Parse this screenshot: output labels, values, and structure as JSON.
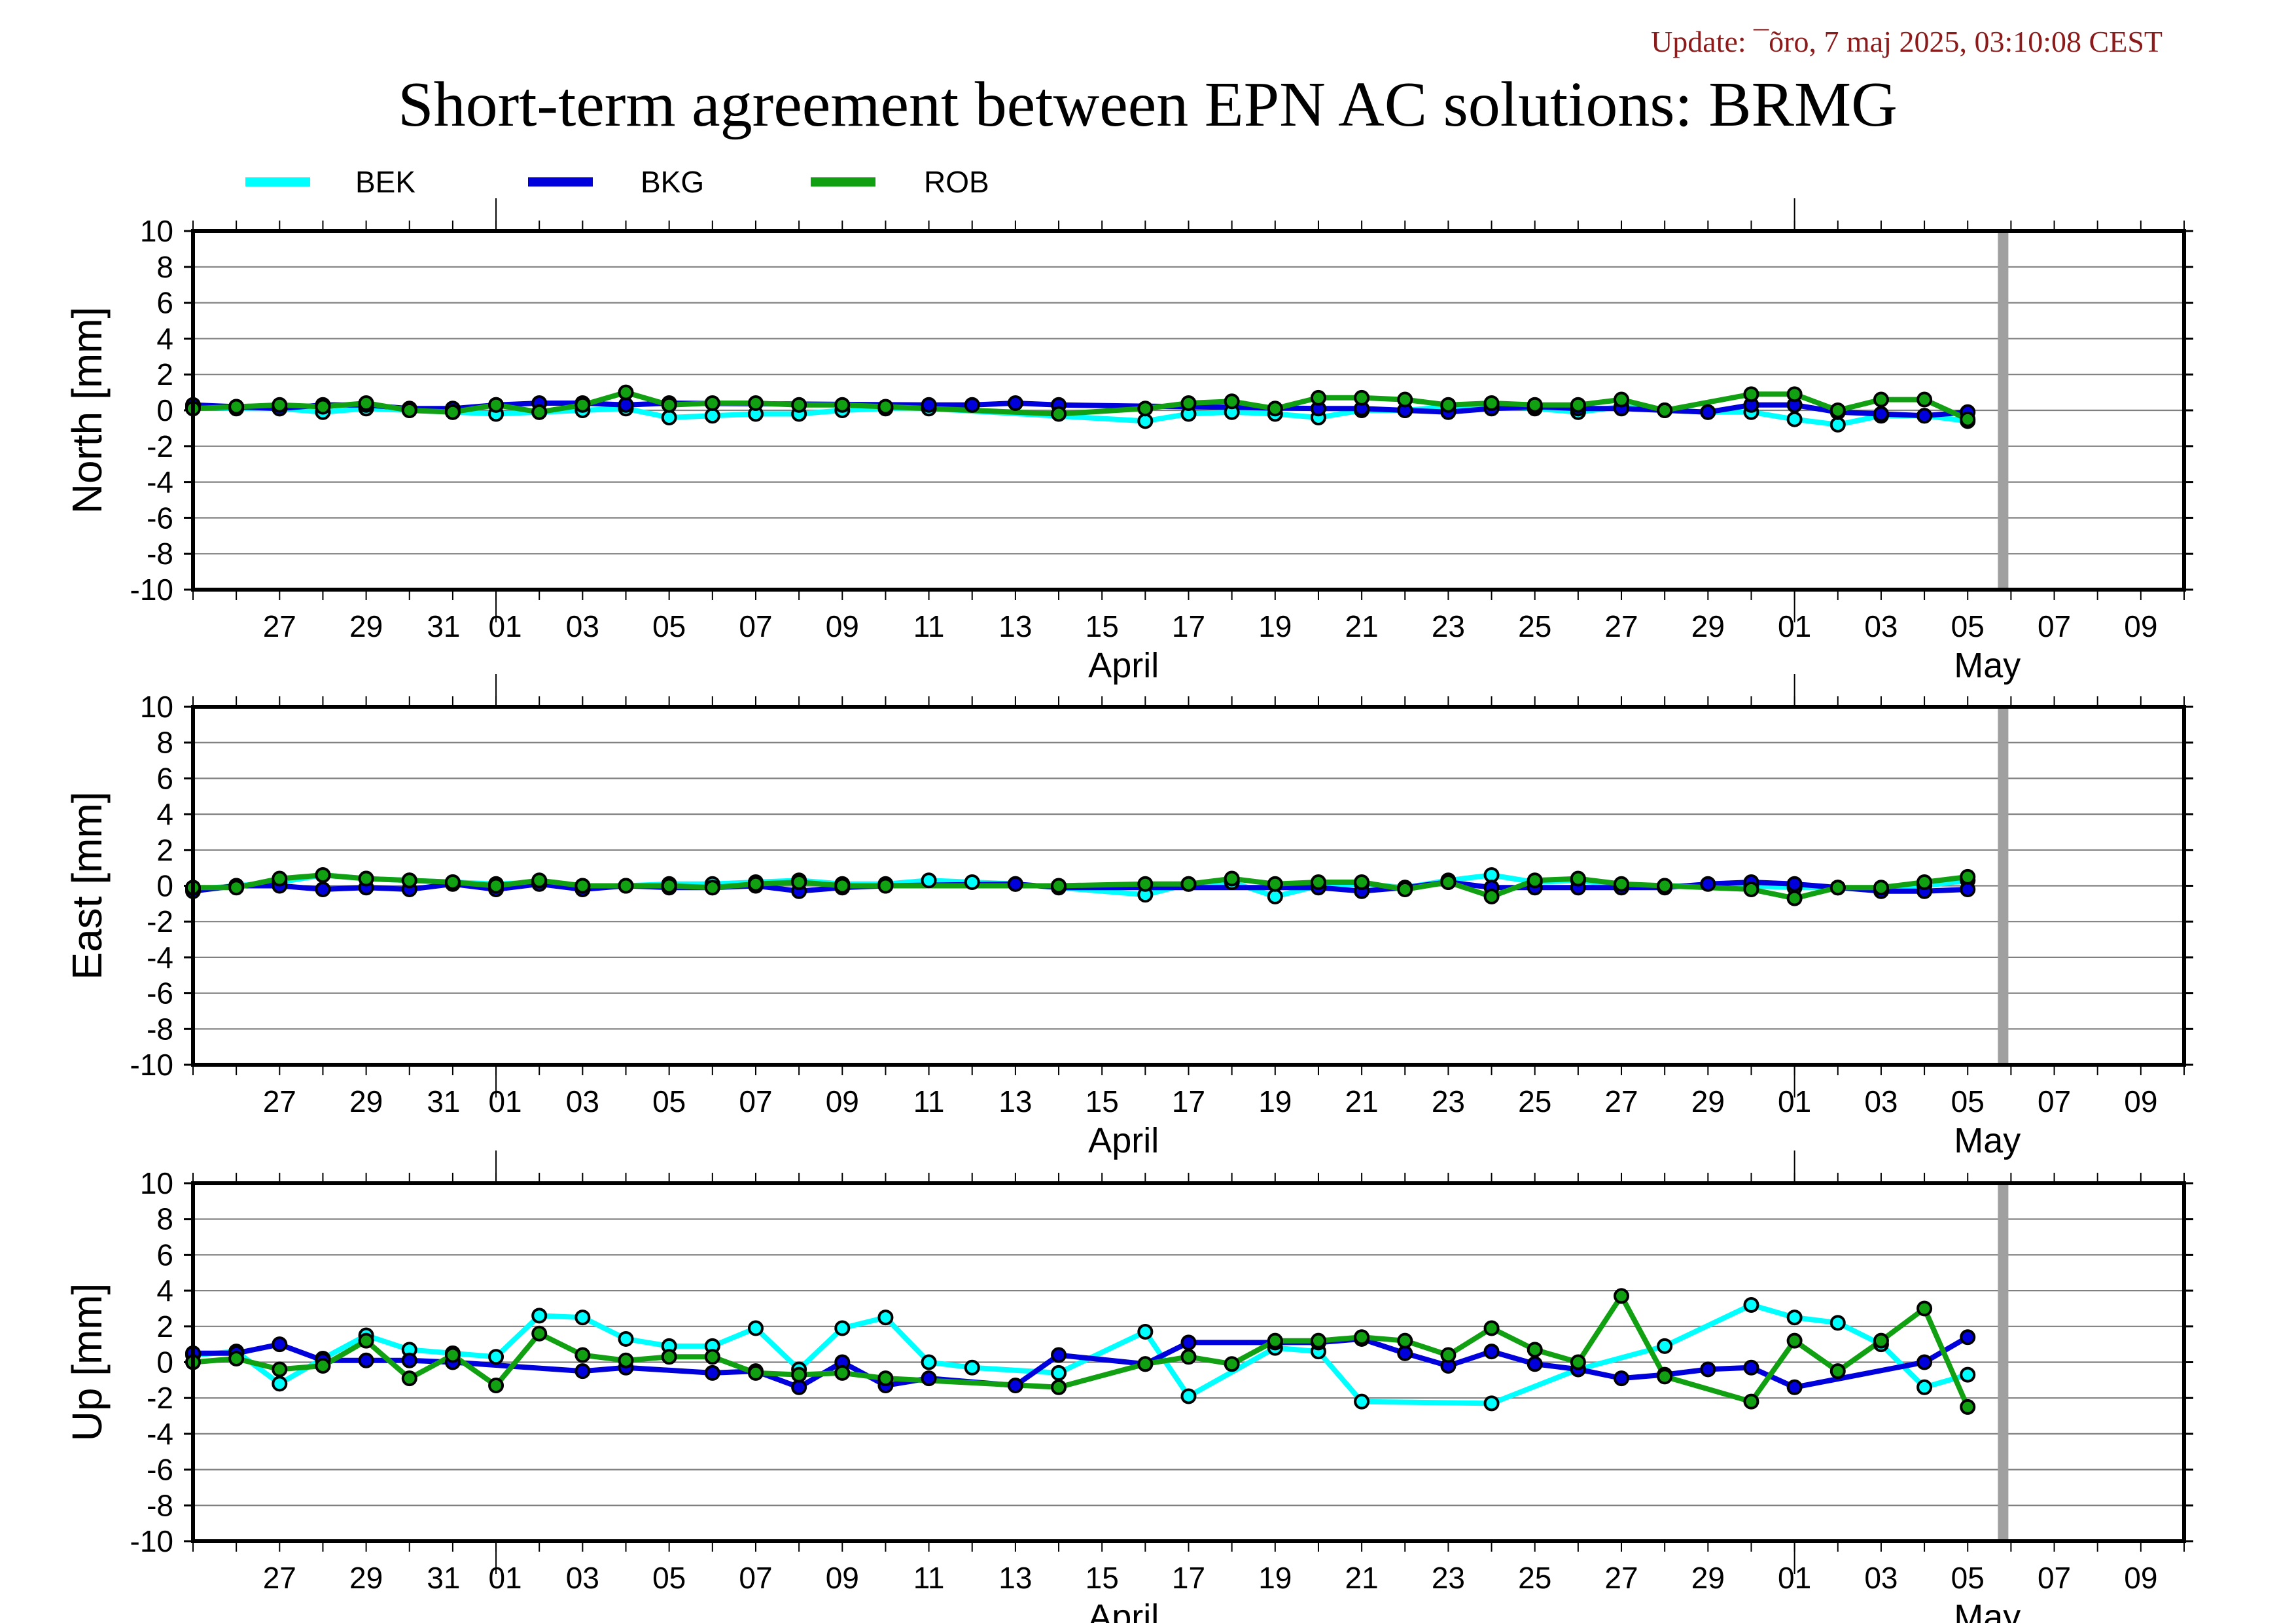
{
  "update_text": "Update: ¯õro, 7 maj 2025, 03:10:08 CEST",
  "title": "Short-term agreement between EPN AC solutions: BRMG",
  "colors": {
    "BEK": "#00ffff",
    "BKG": "#0000dd",
    "ROB": "#11a011",
    "future_marker": "#a0a0a0",
    "grid": "#808080",
    "update_text": "#8b1a1a"
  },
  "legend": [
    {
      "name": "BEK",
      "color": "#00ffff"
    },
    {
      "name": "BKG",
      "color": "#0000dd"
    },
    {
      "name": "ROB",
      "color": "#11a011"
    }
  ],
  "chart_data": [
    {
      "type": "line",
      "ylabel": "North [mm]",
      "ylim": [
        -10,
        10
      ],
      "yticks": [
        10,
        8,
        6,
        4,
        2,
        0,
        -2,
        -4,
        -6,
        -8,
        -10
      ],
      "xlim": [
        "2025-03-25",
        "2025-05-10"
      ],
      "xtick_labels": [
        "27",
        "29",
        "31",
        "01",
        "03",
        "05",
        "07",
        "09",
        "11",
        "13",
        "15",
        "17",
        "19",
        "21",
        "23",
        "25",
        "27",
        "29",
        "01",
        "03",
        "05",
        "07",
        "09"
      ],
      "month_labels": [
        "April",
        "May"
      ],
      "marker_date": "2025-05-06",
      "grid": true,
      "series": [
        {
          "name": "BEK",
          "x": [
            "2025-03-25",
            "2025-03-26",
            "2025-03-27",
            "2025-03-28",
            "2025-03-29",
            "2025-03-30",
            "2025-03-31",
            "2025-04-01",
            "2025-04-02",
            "2025-04-03",
            "2025-04-04",
            "2025-04-05",
            "2025-04-06",
            "2025-04-07",
            "2025-04-08",
            "2025-04-09",
            "2025-04-10",
            "2025-04-11",
            "2025-04-16",
            "2025-04-17",
            "2025-04-18",
            "2025-04-19",
            "2025-04-20",
            "2025-04-21",
            "2025-04-22",
            "2025-04-23",
            "2025-04-24",
            "2025-04-25",
            "2025-04-26",
            "2025-04-27",
            "2025-04-28",
            "2025-04-29",
            "2025-04-30",
            "2025-05-01",
            "2025-05-02",
            "2025-05-03",
            "2025-05-04",
            "2025-05-05"
          ],
          "y": [
            0.2,
            0.1,
            0.1,
            -0.1,
            0.1,
            0.0,
            -0.1,
            -0.2,
            -0.1,
            0.0,
            0.1,
            -0.4,
            -0.3,
            -0.2,
            -0.2,
            0.0,
            0.1,
            0.1,
            -0.6,
            -0.2,
            -0.1,
            -0.2,
            -0.4,
            0.0,
            0.0,
            0.2,
            0.3,
            0.1,
            -0.1,
            0.2,
            0.0,
            -0.1,
            -0.1,
            -0.5,
            -0.8,
            -0.3,
            -0.3,
            -0.6
          ]
        },
        {
          "name": "BKG",
          "x": [
            "2025-03-25",
            "2025-03-26",
            "2025-03-27",
            "2025-03-28",
            "2025-03-29",
            "2025-03-30",
            "2025-03-31",
            "2025-04-01",
            "2025-04-02",
            "2025-04-03",
            "2025-04-04",
            "2025-04-05",
            "2025-04-11",
            "2025-04-12",
            "2025-04-13",
            "2025-04-14",
            "2025-04-20",
            "2025-04-21",
            "2025-04-22",
            "2025-04-23",
            "2025-04-24",
            "2025-04-25",
            "2025-04-26",
            "2025-04-27",
            "2025-04-28",
            "2025-04-29",
            "2025-04-30",
            "2025-05-01",
            "2025-05-02",
            "2025-05-03",
            "2025-05-04",
            "2025-05-05"
          ],
          "y": [
            0.3,
            0.2,
            0.1,
            0.3,
            0.3,
            0.1,
            0.1,
            0.3,
            0.4,
            0.4,
            0.3,
            0.4,
            0.3,
            0.3,
            0.4,
            0.3,
            0.1,
            0.1,
            0.0,
            -0.1,
            0.1,
            0.2,
            0.1,
            0.1,
            0.0,
            -0.1,
            0.3,
            0.3,
            -0.1,
            -0.2,
            -0.3,
            -0.1
          ]
        },
        {
          "name": "ROB",
          "x": [
            "2025-03-25",
            "2025-03-26",
            "2025-03-27",
            "2025-03-28",
            "2025-03-29",
            "2025-03-30",
            "2025-03-31",
            "2025-04-01",
            "2025-04-02",
            "2025-04-03",
            "2025-04-04",
            "2025-04-05",
            "2025-04-06",
            "2025-04-07",
            "2025-04-08",
            "2025-04-09",
            "2025-04-10",
            "2025-04-14",
            "2025-04-16",
            "2025-04-17",
            "2025-04-18",
            "2025-04-19",
            "2025-04-20",
            "2025-04-21",
            "2025-04-22",
            "2025-04-23",
            "2025-04-24",
            "2025-04-25",
            "2025-04-26",
            "2025-04-27",
            "2025-04-28",
            "2025-04-30",
            "2025-05-01",
            "2025-05-02",
            "2025-05-03",
            "2025-05-04",
            "2025-05-05"
          ],
          "y": [
            0.1,
            0.2,
            0.3,
            0.2,
            0.4,
            0.0,
            -0.1,
            0.3,
            -0.1,
            0.3,
            1.0,
            0.3,
            0.4,
            0.4,
            0.3,
            0.3,
            0.2,
            -0.2,
            0.1,
            0.4,
            0.5,
            0.1,
            0.7,
            0.7,
            0.6,
            0.3,
            0.4,
            0.3,
            0.3,
            0.6,
            0.0,
            0.9,
            0.9,
            0.0,
            0.6,
            0.6,
            -0.5
          ]
        }
      ]
    },
    {
      "type": "line",
      "ylabel": "East [mm]",
      "ylim": [
        -10,
        10
      ],
      "yticks": [
        10,
        8,
        6,
        4,
        2,
        0,
        -2,
        -4,
        -6,
        -8,
        -10
      ],
      "xlim": [
        "2025-03-25",
        "2025-05-10"
      ],
      "xtick_labels": [
        "27",
        "29",
        "31",
        "01",
        "03",
        "05",
        "07",
        "09",
        "11",
        "13",
        "15",
        "17",
        "19",
        "21",
        "23",
        "25",
        "27",
        "29",
        "01",
        "03",
        "05",
        "07",
        "09"
      ],
      "month_labels": [
        "April",
        "May"
      ],
      "marker_date": "2025-05-06",
      "grid": true,
      "series": [
        {
          "name": "BEK",
          "x": [
            "2025-03-25",
            "2025-03-26",
            "2025-03-27",
            "2025-03-28",
            "2025-03-29",
            "2025-03-30",
            "2025-03-31",
            "2025-04-01",
            "2025-04-02",
            "2025-04-03",
            "2025-04-04",
            "2025-04-05",
            "2025-04-06",
            "2025-04-07",
            "2025-04-08",
            "2025-04-09",
            "2025-04-10",
            "2025-04-11",
            "2025-04-12",
            "2025-04-13",
            "2025-04-16",
            "2025-04-17",
            "2025-04-18",
            "2025-04-19",
            "2025-04-20",
            "2025-04-21",
            "2025-04-22",
            "2025-04-23",
            "2025-04-24",
            "2025-04-25",
            "2025-04-26",
            "2025-04-27",
            "2025-04-28",
            "2025-04-30",
            "2025-05-01",
            "2025-05-02",
            "2025-05-03",
            "2025-05-04",
            "2025-05-05"
          ],
          "y": [
            -0.2,
            0.0,
            0.2,
            0.6,
            0.4,
            0.3,
            0.2,
            0.1,
            0.2,
            0.0,
            0.0,
            0.1,
            0.1,
            0.2,
            0.3,
            0.1,
            0.1,
            0.3,
            0.2,
            0.1,
            -0.5,
            0.1,
            0.2,
            -0.6,
            0.0,
            0.1,
            -0.1,
            0.3,
            0.6,
            0.2,
            0.3,
            0.0,
            0.0,
            0.0,
            -0.1,
            -0.1,
            -0.2,
            0.0,
            0.3
          ]
        },
        {
          "name": "BKG",
          "x": [
            "2025-03-25",
            "2025-03-26",
            "2025-03-27",
            "2025-03-28",
            "2025-03-29",
            "2025-03-30",
            "2025-03-31",
            "2025-04-01",
            "2025-04-02",
            "2025-04-03",
            "2025-04-04",
            "2025-04-05",
            "2025-04-06",
            "2025-04-07",
            "2025-04-08",
            "2025-04-09",
            "2025-04-10",
            "2025-04-13",
            "2025-04-14",
            "2025-04-20",
            "2025-04-21",
            "2025-04-22",
            "2025-04-23",
            "2025-04-24",
            "2025-04-25",
            "2025-04-26",
            "2025-04-27",
            "2025-04-28",
            "2025-04-29",
            "2025-04-30",
            "2025-05-01",
            "2025-05-02",
            "2025-05-03",
            "2025-05-04",
            "2025-05-05"
          ],
          "y": [
            -0.3,
            0.0,
            0.0,
            -0.2,
            -0.1,
            -0.2,
            0.1,
            -0.2,
            0.1,
            -0.2,
            0.0,
            -0.1,
            -0.1,
            0.0,
            -0.3,
            -0.1,
            0.0,
            0.1,
            -0.1,
            -0.1,
            -0.3,
            -0.1,
            0.2,
            -0.1,
            -0.1,
            -0.1,
            -0.1,
            -0.1,
            0.1,
            0.2,
            0.1,
            -0.1,
            -0.3,
            -0.3,
            -0.2
          ]
        },
        {
          "name": "ROB",
          "x": [
            "2025-03-25",
            "2025-03-26",
            "2025-03-27",
            "2025-03-28",
            "2025-03-29",
            "2025-03-30",
            "2025-03-31",
            "2025-04-01",
            "2025-04-02",
            "2025-04-03",
            "2025-04-04",
            "2025-04-05",
            "2025-04-06",
            "2025-04-07",
            "2025-04-08",
            "2025-04-09",
            "2025-04-10",
            "2025-04-14",
            "2025-04-16",
            "2025-04-17",
            "2025-04-18",
            "2025-04-19",
            "2025-04-20",
            "2025-04-21",
            "2025-04-22",
            "2025-04-23",
            "2025-04-24",
            "2025-04-25",
            "2025-04-26",
            "2025-04-27",
            "2025-04-28",
            "2025-04-30",
            "2025-05-01",
            "2025-05-02",
            "2025-05-03",
            "2025-05-04",
            "2025-05-05"
          ],
          "y": [
            -0.1,
            -0.1,
            0.4,
            0.6,
            0.4,
            0.3,
            0.2,
            0.0,
            0.3,
            0.0,
            0.0,
            0.0,
            -0.1,
            0.1,
            0.2,
            0.0,
            0.0,
            0.0,
            0.1,
            0.1,
            0.4,
            0.1,
            0.2,
            0.2,
            -0.2,
            0.2,
            -0.6,
            0.3,
            0.4,
            0.1,
            0.0,
            -0.2,
            -0.7,
            -0.1,
            -0.1,
            0.2,
            0.5
          ]
        }
      ]
    },
    {
      "type": "line",
      "ylabel": "Up [mm]",
      "ylim": [
        -10,
        10
      ],
      "yticks": [
        10,
        8,
        6,
        4,
        2,
        0,
        -2,
        -4,
        -6,
        -8,
        -10
      ],
      "xlim": [
        "2025-03-25",
        "2025-05-10"
      ],
      "xtick_labels": [
        "27",
        "29",
        "31",
        "01",
        "03",
        "05",
        "07",
        "09",
        "11",
        "13",
        "15",
        "17",
        "19",
        "21",
        "23",
        "25",
        "27",
        "29",
        "01",
        "03",
        "05",
        "07",
        "09"
      ],
      "month_labels": [
        "April",
        "May"
      ],
      "marker_date": "2025-05-06",
      "grid": true,
      "series": [
        {
          "name": "BEK",
          "x": [
            "2025-03-25",
            "2025-03-26",
            "2025-03-27",
            "2025-03-28",
            "2025-03-29",
            "2025-03-30",
            "2025-03-31",
            "2025-04-01",
            "2025-04-02",
            "2025-04-03",
            "2025-04-04",
            "2025-04-05",
            "2025-04-06",
            "2025-04-07",
            "2025-04-08",
            "2025-04-09",
            "2025-04-10",
            "2025-04-11",
            "2025-04-12",
            "2025-04-14",
            "2025-04-16",
            "2025-04-17",
            "2025-04-19",
            "2025-04-20",
            "2025-04-21",
            "2025-04-24",
            "2025-04-26",
            "2025-04-28",
            "2025-04-30",
            "2025-05-01",
            "2025-05-02",
            "2025-05-03",
            "2025-05-04",
            "2025-05-05"
          ],
          "y": [
            0.4,
            0.6,
            -1.2,
            0.2,
            1.5,
            0.7,
            0.5,
            0.3,
            2.6,
            2.5,
            1.3,
            0.9,
            0.9,
            1.9,
            -0.4,
            1.9,
            2.5,
            0.0,
            -0.3,
            -0.6,
            1.7,
            -1.9,
            0.8,
            0.6,
            -2.2,
            -2.3,
            -0.4,
            0.9,
            3.2,
            2.5,
            2.2,
            1.0,
            -1.4,
            -0.7
          ]
        },
        {
          "name": "BKG",
          "x": [
            "2025-03-25",
            "2025-03-26",
            "2025-03-27",
            "2025-03-28",
            "2025-03-29",
            "2025-03-30",
            "2025-03-31",
            "2025-04-03",
            "2025-04-04",
            "2025-04-06",
            "2025-04-07",
            "2025-04-08",
            "2025-04-09",
            "2025-04-10",
            "2025-04-11",
            "2025-04-13",
            "2025-04-14",
            "2025-04-16",
            "2025-04-17",
            "2025-04-19",
            "2025-04-20",
            "2025-04-21",
            "2025-04-22",
            "2025-04-23",
            "2025-04-24",
            "2025-04-25",
            "2025-04-26",
            "2025-04-27",
            "2025-04-28",
            "2025-04-29",
            "2025-04-30",
            "2025-05-01",
            "2025-05-04",
            "2025-05-05"
          ],
          "y": [
            0.5,
            0.5,
            1.0,
            0.1,
            0.1,
            0.1,
            0.0,
            -0.5,
            -0.3,
            -0.6,
            -0.5,
            -1.4,
            0.0,
            -1.3,
            -0.9,
            -1.3,
            0.4,
            -0.1,
            1.1,
            1.1,
            1.1,
            1.3,
            0.5,
            -0.2,
            0.6,
            -0.1,
            -0.4,
            -0.9,
            -0.7,
            -0.4,
            -0.3,
            -1.4,
            0.0,
            1.4
          ]
        },
        {
          "name": "ROB",
          "x": [
            "2025-03-25",
            "2025-03-26",
            "2025-03-27",
            "2025-03-28",
            "2025-03-29",
            "2025-03-30",
            "2025-03-31",
            "2025-04-01",
            "2025-04-02",
            "2025-04-03",
            "2025-04-04",
            "2025-04-05",
            "2025-04-06",
            "2025-04-07",
            "2025-04-08",
            "2025-04-09",
            "2025-04-10",
            "2025-04-14",
            "2025-04-16",
            "2025-04-17",
            "2025-04-18",
            "2025-04-19",
            "2025-04-20",
            "2025-04-21",
            "2025-04-22",
            "2025-04-23",
            "2025-04-24",
            "2025-04-25",
            "2025-04-26",
            "2025-04-27",
            "2025-04-28",
            "2025-04-30",
            "2025-05-01",
            "2025-05-02",
            "2025-05-03",
            "2025-05-04",
            "2025-05-05"
          ],
          "y": [
            0.0,
            0.2,
            -0.4,
            -0.2,
            1.2,
            -0.9,
            0.4,
            -1.3,
            1.6,
            0.4,
            0.1,
            0.3,
            0.3,
            -0.6,
            -0.7,
            -0.6,
            -0.9,
            -1.4,
            -0.1,
            0.3,
            -0.1,
            1.2,
            1.2,
            1.4,
            1.2,
            0.4,
            1.9,
            0.7,
            0.0,
            3.7,
            -0.8,
            -2.2,
            1.2,
            -0.5,
            1.2,
            3.0,
            -2.5
          ]
        }
      ]
    }
  ]
}
